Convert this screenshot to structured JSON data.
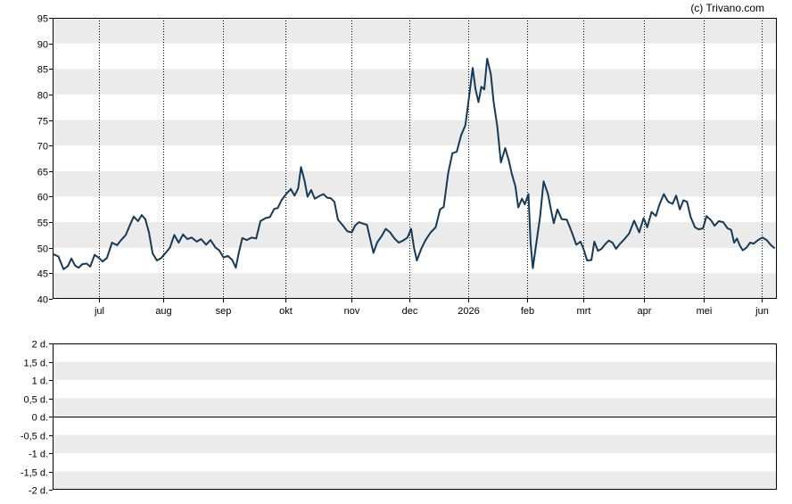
{
  "copyright": "(c) Trivano.com",
  "colors": {
    "line": "#163a57",
    "band": "#ebebeb",
    "grid": "#000000",
    "frame": "#000000"
  },
  "chart_data": [
    {
      "type": "line",
      "ylim": [
        40,
        95
      ],
      "y_ticks": [
        40,
        45,
        50,
        55,
        60,
        65,
        70,
        75,
        80,
        85,
        90,
        95
      ],
      "x_ticks": [
        {
          "label": "jul",
          "x": 0.064
        },
        {
          "label": "aug",
          "x": 0.153
        },
        {
          "label": "sep",
          "x": 0.235
        },
        {
          "label": "okt",
          "x": 0.322
        },
        {
          "label": "nov",
          "x": 0.413
        },
        {
          "label": "dec",
          "x": 0.492
        },
        {
          "label": "2026",
          "x": 0.574
        },
        {
          "label": "feb",
          "x": 0.655
        },
        {
          "label": "mrt",
          "x": 0.733
        },
        {
          "label": "apr",
          "x": 0.816
        },
        {
          "label": "mei",
          "x": 0.899
        },
        {
          "label": "jun",
          "x": 0.979
        }
      ],
      "grid": "vertical dotted lines at month ticks, alternating horizontal bands",
      "series": [
        {
          "values": [
            [
              0.0,
              48.8
            ],
            [
              0.008,
              48.3
            ],
            [
              0.015,
              45.8
            ],
            [
              0.021,
              46.4
            ],
            [
              0.026,
              47.9
            ],
            [
              0.031,
              46.5
            ],
            [
              0.036,
              46.1
            ],
            [
              0.041,
              46.8
            ],
            [
              0.047,
              46.9
            ],
            [
              0.052,
              46.3
            ],
            [
              0.058,
              48.6
            ],
            [
              0.064,
              48.0
            ],
            [
              0.069,
              47.3
            ],
            [
              0.075,
              48.0
            ],
            [
              0.082,
              51.0
            ],
            [
              0.089,
              50.5
            ],
            [
              0.094,
              51.4
            ],
            [
              0.101,
              52.5
            ],
            [
              0.106,
              54.2
            ],
            [
              0.112,
              56.1
            ],
            [
              0.118,
              55.2
            ],
            [
              0.123,
              56.4
            ],
            [
              0.128,
              55.6
            ],
            [
              0.133,
              53.0
            ],
            [
              0.138,
              48.9
            ],
            [
              0.144,
              47.5
            ],
            [
              0.15,
              48.0
            ],
            [
              0.156,
              49.0
            ],
            [
              0.162,
              50.0
            ],
            [
              0.168,
              52.5
            ],
            [
              0.174,
              51.0
            ],
            [
              0.18,
              52.6
            ],
            [
              0.186,
              51.7
            ],
            [
              0.192,
              52.0
            ],
            [
              0.199,
              51.2
            ],
            [
              0.205,
              51.7
            ],
            [
              0.212,
              50.6
            ],
            [
              0.218,
              51.5
            ],
            [
              0.225,
              50.0
            ],
            [
              0.23,
              49.5
            ],
            [
              0.236,
              48.1
            ],
            [
              0.242,
              48.4
            ],
            [
              0.248,
              47.6
            ],
            [
              0.253,
              46.1
            ],
            [
              0.257,
              49.0
            ],
            [
              0.262,
              51.9
            ],
            [
              0.268,
              51.5
            ],
            [
              0.275,
              52.0
            ],
            [
              0.281,
              51.8
            ],
            [
              0.287,
              55.2
            ],
            [
              0.294,
              55.8
            ],
            [
              0.3,
              56.0
            ],
            [
              0.306,
              57.6
            ],
            [
              0.311,
              57.8
            ],
            [
              0.316,
              59.3
            ],
            [
              0.323,
              60.6
            ],
            [
              0.329,
              61.5
            ],
            [
              0.334,
              60.2
            ],
            [
              0.339,
              61.6
            ],
            [
              0.343,
              65.8
            ],
            [
              0.348,
              63.0
            ],
            [
              0.352,
              60.0
            ],
            [
              0.357,
              61.3
            ],
            [
              0.362,
              59.6
            ],
            [
              0.368,
              60.1
            ],
            [
              0.374,
              60.5
            ],
            [
              0.379,
              59.8
            ],
            [
              0.384,
              59.7
            ],
            [
              0.389,
              59.0
            ],
            [
              0.394,
              55.5
            ],
            [
              0.4,
              54.5
            ],
            [
              0.407,
              53.2
            ],
            [
              0.413,
              53.0
            ],
            [
              0.418,
              54.4
            ],
            [
              0.423,
              55.0
            ],
            [
              0.429,
              54.7
            ],
            [
              0.434,
              54.5
            ],
            [
              0.439,
              51.4
            ],
            [
              0.443,
              49.0
            ],
            [
              0.448,
              51.0
            ],
            [
              0.454,
              52.2
            ],
            [
              0.46,
              53.7
            ],
            [
              0.466,
              53.0
            ],
            [
              0.472,
              51.8
            ],
            [
              0.478,
              51.0
            ],
            [
              0.484,
              51.4
            ],
            [
              0.49,
              52.0
            ],
            [
              0.495,
              53.7
            ],
            [
              0.499,
              50.0
            ],
            [
              0.503,
              47.5
            ],
            [
              0.509,
              49.8
            ],
            [
              0.515,
              51.5
            ],
            [
              0.522,
              53.0
            ],
            [
              0.529,
              54.0
            ],
            [
              0.535,
              57.5
            ],
            [
              0.54,
              58.0
            ],
            [
              0.546,
              64.5
            ],
            [
              0.552,
              68.5
            ],
            [
              0.558,
              68.8
            ],
            [
              0.564,
              72.0
            ],
            [
              0.57,
              74.0
            ],
            [
              0.575,
              79.5
            ],
            [
              0.58,
              85.2
            ],
            [
              0.584,
              81.0
            ],
            [
              0.588,
              78.5
            ],
            [
              0.592,
              81.5
            ],
            [
              0.596,
              81.0
            ],
            [
              0.6,
              87.0
            ],
            [
              0.605,
              84.0
            ],
            [
              0.609,
              78.5
            ],
            [
              0.614,
              73.7
            ],
            [
              0.619,
              66.7
            ],
            [
              0.625,
              69.5
            ],
            [
              0.63,
              67.0
            ],
            [
              0.634,
              64.5
            ],
            [
              0.639,
              62.0
            ],
            [
              0.643,
              57.9
            ],
            [
              0.648,
              59.6
            ],
            [
              0.652,
              58.5
            ],
            [
              0.657,
              60.5
            ],
            [
              0.66,
              51.0
            ],
            [
              0.663,
              46.0
            ],
            [
              0.667,
              50.0
            ],
            [
              0.673,
              56.0
            ],
            [
              0.678,
              63.0
            ],
            [
              0.684,
              60.5
            ],
            [
              0.688,
              57.5
            ],
            [
              0.692,
              54.8
            ],
            [
              0.697,
              57.5
            ],
            [
              0.703,
              55.6
            ],
            [
              0.71,
              55.5
            ],
            [
              0.717,
              53.0
            ],
            [
              0.723,
              50.6
            ],
            [
              0.729,
              51.2
            ],
            [
              0.733,
              49.8
            ],
            [
              0.738,
              47.5
            ],
            [
              0.744,
              47.6
            ],
            [
              0.748,
              51.2
            ],
            [
              0.753,
              49.4
            ],
            [
              0.758,
              49.8
            ],
            [
              0.763,
              50.7
            ],
            [
              0.768,
              51.4
            ],
            [
              0.773,
              51.0
            ],
            [
              0.778,
              49.8
            ],
            [
              0.783,
              50.7
            ],
            [
              0.789,
              51.6
            ],
            [
              0.796,
              52.8
            ],
            [
              0.803,
              55.3
            ],
            [
              0.81,
              53.0
            ],
            [
              0.816,
              55.8
            ],
            [
              0.821,
              54.0
            ],
            [
              0.827,
              57.0
            ],
            [
              0.833,
              56.2
            ],
            [
              0.838,
              58.5
            ],
            [
              0.844,
              60.5
            ],
            [
              0.85,
              59.0
            ],
            [
              0.856,
              58.6
            ],
            [
              0.861,
              60.2
            ],
            [
              0.866,
              57.5
            ],
            [
              0.871,
              59.3
            ],
            [
              0.876,
              59.0
            ],
            [
              0.881,
              56.0
            ],
            [
              0.887,
              54.0
            ],
            [
              0.892,
              53.6
            ],
            [
              0.898,
              53.8
            ],
            [
              0.903,
              56.2
            ],
            [
              0.909,
              55.4
            ],
            [
              0.914,
              54.3
            ],
            [
              0.92,
              55.2
            ],
            [
              0.926,
              55.0
            ],
            [
              0.932,
              53.8
            ],
            [
              0.937,
              53.5
            ],
            [
              0.941,
              51.0
            ],
            [
              0.945,
              51.8
            ],
            [
              0.949,
              50.4
            ],
            [
              0.953,
              49.5
            ],
            [
              0.958,
              50.0
            ],
            [
              0.963,
              51.0
            ],
            [
              0.968,
              50.8
            ],
            [
              0.974,
              51.5
            ],
            [
              0.98,
              52.0
            ],
            [
              0.986,
              51.5
            ],
            [
              0.992,
              50.5
            ],
            [
              0.997,
              49.9
            ]
          ]
        }
      ]
    },
    {
      "type": "line",
      "ylim": [
        -2,
        2
      ],
      "y_ticks": [
        {
          "value": 2,
          "label": "2 d."
        },
        {
          "value": 1.5,
          "label": "1,5 d."
        },
        {
          "value": 1,
          "label": "1 d."
        },
        {
          "value": 0.5,
          "label": "0,5 d."
        },
        {
          "value": 0,
          "label": "0 d."
        },
        {
          "value": -0.5,
          "label": "-0,5 d."
        },
        {
          "value": -1,
          "label": "-1 d."
        },
        {
          "value": -1.5,
          "label": "-1,5 d."
        },
        {
          "value": -2,
          "label": "-2 d."
        }
      ],
      "series": []
    }
  ]
}
